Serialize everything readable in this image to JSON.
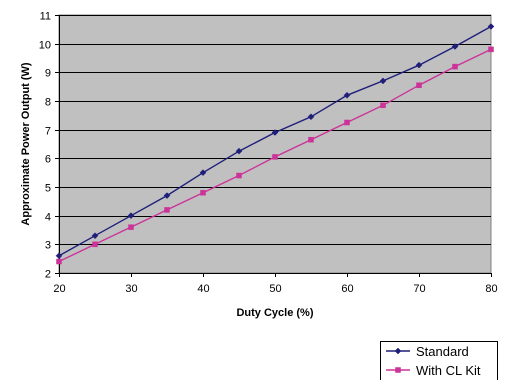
{
  "chart_data": {
    "type": "line",
    "title": "",
    "xlabel": "Duty Cycle (%)",
    "ylabel": "Approximate Power Output (W)",
    "xlim": [
      20,
      80
    ],
    "ylim": [
      2,
      11
    ],
    "xticks": [
      20,
      30,
      40,
      50,
      60,
      70,
      80
    ],
    "yticks": [
      2,
      3,
      4,
      5,
      6,
      7,
      8,
      9,
      10,
      11
    ],
    "grid": true,
    "plot_background": "#c0c0c0",
    "legend_position": "bottom-right",
    "series": [
      {
        "name": "Standard",
        "color": "#1f1f7a",
        "marker": "diamond",
        "x": [
          20,
          25,
          30,
          35,
          40,
          45,
          50,
          55,
          60,
          65,
          70,
          75,
          80
        ],
        "y": [
          2.6,
          3.3,
          4.0,
          4.7,
          5.5,
          6.25,
          6.9,
          7.45,
          8.2,
          8.7,
          9.25,
          9.9,
          10.6
        ]
      },
      {
        "name": "With CL Kit",
        "color": "#cc3399",
        "marker": "square",
        "x": [
          20,
          25,
          30,
          35,
          40,
          45,
          50,
          55,
          60,
          65,
          70,
          75,
          80
        ],
        "y": [
          2.4,
          3.0,
          3.6,
          4.2,
          4.8,
          5.4,
          6.05,
          6.65,
          7.25,
          7.85,
          8.55,
          9.2,
          9.8
        ]
      }
    ]
  }
}
